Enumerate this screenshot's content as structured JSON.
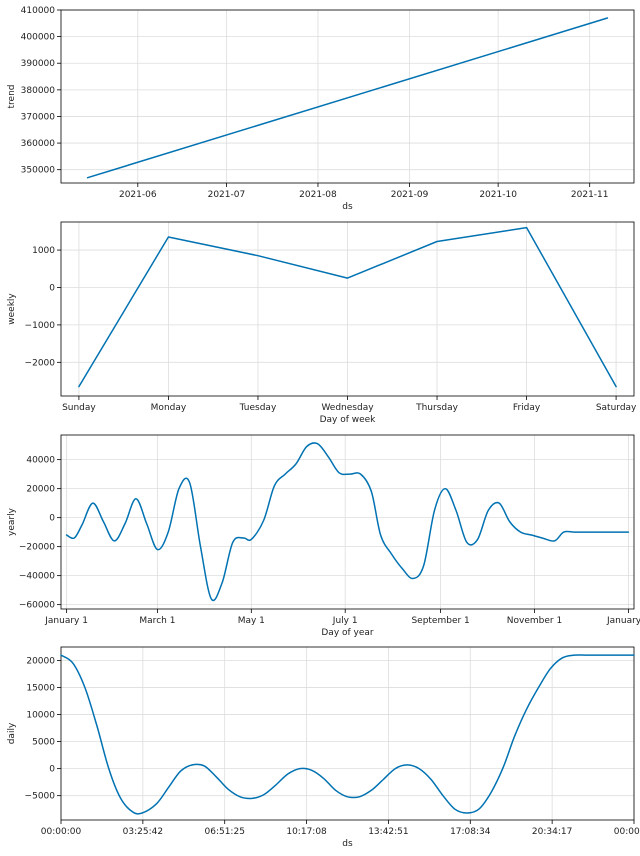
{
  "chart_data": [
    {
      "type": "line",
      "panel": "trend",
      "xlabel": "ds",
      "ylabel": "trend",
      "x": [
        "2021-05-15",
        "2021-11-07"
      ],
      "values": [
        347000,
        407000
      ],
      "xlim": [
        "2021-05-06",
        "2021-11-16"
      ],
      "ylim": [
        345000,
        410000
      ],
      "x_ticks": [
        "2021-06-01",
        "2021-07-01",
        "2021-08-01",
        "2021-09-01",
        "2021-10-01",
        "2021-11-01"
      ],
      "x_tick_labels": [
        "2021-06",
        "2021-07",
        "2021-08",
        "2021-09",
        "2021-10",
        "2021-11"
      ],
      "y_ticks": [
        350000,
        360000,
        370000,
        380000,
        390000,
        400000,
        410000
      ],
      "y_tick_labels": [
        "350000",
        "360000",
        "370000",
        "380000",
        "390000",
        "400000",
        "410000"
      ],
      "grid": true,
      "color": "#0072B2"
    },
    {
      "type": "line",
      "panel": "weekly",
      "xlabel": "Day of week",
      "ylabel": "weekly",
      "categories": [
        "Sunday",
        "Monday",
        "Tuesday",
        "Wednesday",
        "Thursday",
        "Friday",
        "Saturday"
      ],
      "values": [
        -2650,
        1350,
        850,
        250,
        1230,
        1600,
        -2650
      ],
      "ylim": [
        -2900,
        1750
      ],
      "y_ticks": [
        1000,
        0,
        -1000,
        -2000
      ],
      "y_tick_labels": [
        "1000",
        "0",
        "−1000",
        "−2000"
      ],
      "grid": true,
      "color": "#0072B2"
    },
    {
      "type": "line",
      "panel": "yearly",
      "xlabel": "Day of year",
      "ylabel": "yearly",
      "x": [
        0,
        5,
        10,
        17,
        24,
        31,
        38,
        45,
        52,
        59,
        66,
        73,
        80,
        87,
        94,
        101,
        108,
        115,
        120,
        128,
        135,
        142,
        149,
        156,
        163,
        170,
        177,
        184,
        191,
        198,
        204,
        211,
        218,
        225,
        232,
        239,
        246,
        253,
        260,
        267,
        274,
        281,
        288,
        295,
        302,
        309,
        317,
        323,
        330,
        338,
        345,
        352,
        358,
        365
      ],
      "values": [
        -12000,
        -14000,
        -5000,
        10000,
        -3000,
        -16000,
        -4000,
        13000,
        -4000,
        -22000,
        -10000,
        20000,
        24000,
        -20000,
        -56000,
        -45000,
        -17000,
        -14000,
        -15000,
        -2000,
        22000,
        30000,
        37000,
        49000,
        51000,
        42000,
        31000,
        30000,
        30000,
        18000,
        -12000,
        -25000,
        -35000,
        -42000,
        -33000,
        5000,
        20000,
        5000,
        -17000,
        -15000,
        5000,
        10000,
        -3000,
        -10000,
        -12000,
        -14000,
        -16000,
        -10000,
        -10000,
        -10000,
        -10000,
        -10000,
        -10000,
        -10000
      ],
      "ylim": [
        -63000,
        57000
      ],
      "x_ticks": [
        0,
        59,
        120,
        181,
        243,
        304,
        365
      ],
      "x_tick_labels": [
        "January 1",
        "March 1",
        "May 1",
        "July 1",
        "September 1",
        "November 1",
        "January 1"
      ],
      "y_ticks": [
        40000,
        20000,
        0,
        -20000,
        -40000,
        -60000
      ],
      "y_tick_labels": [
        "40000",
        "20000",
        "0",
        "−20000",
        "−40000",
        "−60000"
      ],
      "grid": true,
      "color": "#0072B2"
    },
    {
      "type": "line",
      "panel": "daily",
      "xlabel": "ds",
      "ylabel": "daily",
      "x": [
        0,
        0.5,
        1,
        1.5,
        2,
        2.5,
        3,
        3.4,
        4,
        4.5,
        5,
        5.5,
        6,
        6.5,
        7,
        7.5,
        8,
        8.5,
        9,
        9.5,
        10,
        10.5,
        11,
        11.5,
        12,
        12.5,
        13,
        13.5,
        14,
        14.5,
        15,
        15.5,
        16,
        16.5,
        17,
        17.5,
        18,
        18.5,
        19,
        19.5,
        20,
        20.5,
        21,
        21.5,
        22,
        22.5,
        23,
        23.5,
        24
      ],
      "values": [
        21000,
        19500,
        15000,
        8000,
        0,
        -5500,
        -8000,
        -8200,
        -6500,
        -3500,
        -500,
        700,
        500,
        -1500,
        -3800,
        -5200,
        -5500,
        -4800,
        -3000,
        -1000,
        0,
        -300,
        -1800,
        -4000,
        -5200,
        -5200,
        -4000,
        -2000,
        0,
        700,
        0,
        -2000,
        -5000,
        -7500,
        -8200,
        -7500,
        -4500,
        0,
        6000,
        11000,
        15000,
        18500,
        20500,
        21000,
        21000,
        21000,
        21000,
        21000,
        21000
      ],
      "xlim": [
        0,
        24
      ],
      "ylim": [
        -9500,
        22500
      ],
      "x_ticks": [
        0,
        3.4286,
        6.8571,
        10.2857,
        13.7143,
        17.1429,
        20.5714,
        24
      ],
      "x_tick_labels": [
        "00:00:00",
        "03:25:42",
        "06:51:25",
        "10:17:08",
        "13:42:51",
        "17:08:34",
        "20:34:17",
        "00:00:00"
      ],
      "y_ticks": [
        20000,
        15000,
        10000,
        5000,
        0,
        -5000
      ],
      "y_tick_labels": [
        "20000",
        "15000",
        "10000",
        "5000",
        "0",
        "−5000"
      ],
      "grid": true,
      "color": "#0072B2"
    }
  ]
}
